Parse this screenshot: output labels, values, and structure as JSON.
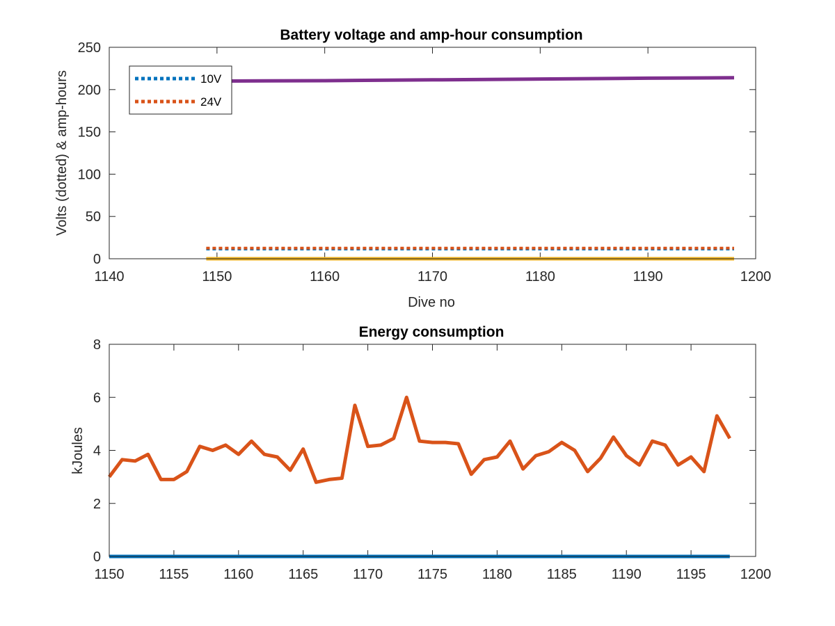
{
  "colors": {
    "blue": "#0072BD",
    "orange": "#D95319",
    "yellow": "#EDB120",
    "purple": "#7E2F8E",
    "axis": "#262626"
  },
  "chart_data": [
    {
      "type": "line",
      "title": "Battery voltage and amp-hour consumption",
      "xlabel": "Dive no",
      "ylabel": "Volts (dotted) & amp-hours",
      "xlim": [
        1140,
        1200
      ],
      "ylim": [
        0,
        250
      ],
      "xticks": [
        1140,
        1150,
        1160,
        1170,
        1180,
        1190,
        1200
      ],
      "yticks": [
        0,
        50,
        100,
        150,
        200,
        250
      ],
      "grid": false,
      "legend_position": "top-left",
      "series": [
        {
          "name": "10V",
          "style": "dotted",
          "color": "#0072BD",
          "x": [
            1149,
            1198
          ],
          "y": [
            11.5,
            11.5
          ]
        },
        {
          "name": "24V",
          "style": "dotted",
          "color": "#D95319",
          "x": [
            1149,
            1198
          ],
          "y": [
            12.5,
            12.5
          ]
        },
        {
          "style": "solid",
          "color": "#EDB120",
          "x": [
            1149,
            1198
          ],
          "y": [
            0,
            0
          ]
        },
        {
          "style": "solid",
          "color": "#7E2F8E",
          "x": [
            1149,
            1160,
            1170,
            1180,
            1190,
            1198
          ],
          "y": [
            210,
            210.5,
            211.5,
            212.5,
            213.5,
            214
          ]
        }
      ]
    },
    {
      "type": "line",
      "title": "Energy consumption",
      "xlabel": "",
      "ylabel": "kJoules",
      "xlim": [
        1150,
        1200
      ],
      "ylim": [
        0,
        8
      ],
      "xticks": [
        1150,
        1155,
        1160,
        1165,
        1170,
        1175,
        1180,
        1185,
        1190,
        1195,
        1200
      ],
      "yticks": [
        0,
        2,
        4,
        6,
        8
      ],
      "grid": false,
      "series": [
        {
          "style": "solid",
          "color": "#0072BD",
          "x": [
            1150,
            1198
          ],
          "y": [
            0,
            0
          ]
        },
        {
          "style": "solid",
          "color": "#D95319",
          "x": [
            1150,
            1151,
            1152,
            1153,
            1154,
            1155,
            1156,
            1157,
            1158,
            1159,
            1160,
            1161,
            1162,
            1163,
            1164,
            1165,
            1166,
            1167,
            1168,
            1169,
            1170,
            1171,
            1172,
            1173,
            1174,
            1175,
            1176,
            1177,
            1178,
            1179,
            1180,
            1181,
            1182,
            1183,
            1184,
            1185,
            1186,
            1187,
            1188,
            1189,
            1190,
            1191,
            1192,
            1193,
            1194,
            1195,
            1196,
            1197,
            1198
          ],
          "y": [
            3.0,
            3.65,
            3.6,
            3.85,
            2.9,
            2.9,
            3.2,
            4.15,
            4.0,
            4.2,
            3.85,
            4.35,
            3.85,
            3.75,
            3.25,
            4.05,
            2.8,
            2.9,
            2.95,
            5.7,
            4.15,
            4.2,
            4.45,
            6.0,
            4.35,
            4.3,
            4.3,
            4.25,
            3.1,
            3.65,
            3.75,
            4.35,
            3.3,
            3.8,
            3.95,
            4.3,
            4.0,
            3.2,
            3.7,
            4.5,
            3.8,
            3.45,
            4.35,
            4.2,
            3.45,
            3.75,
            3.2,
            5.3,
            4.45
          ]
        }
      ]
    }
  ]
}
